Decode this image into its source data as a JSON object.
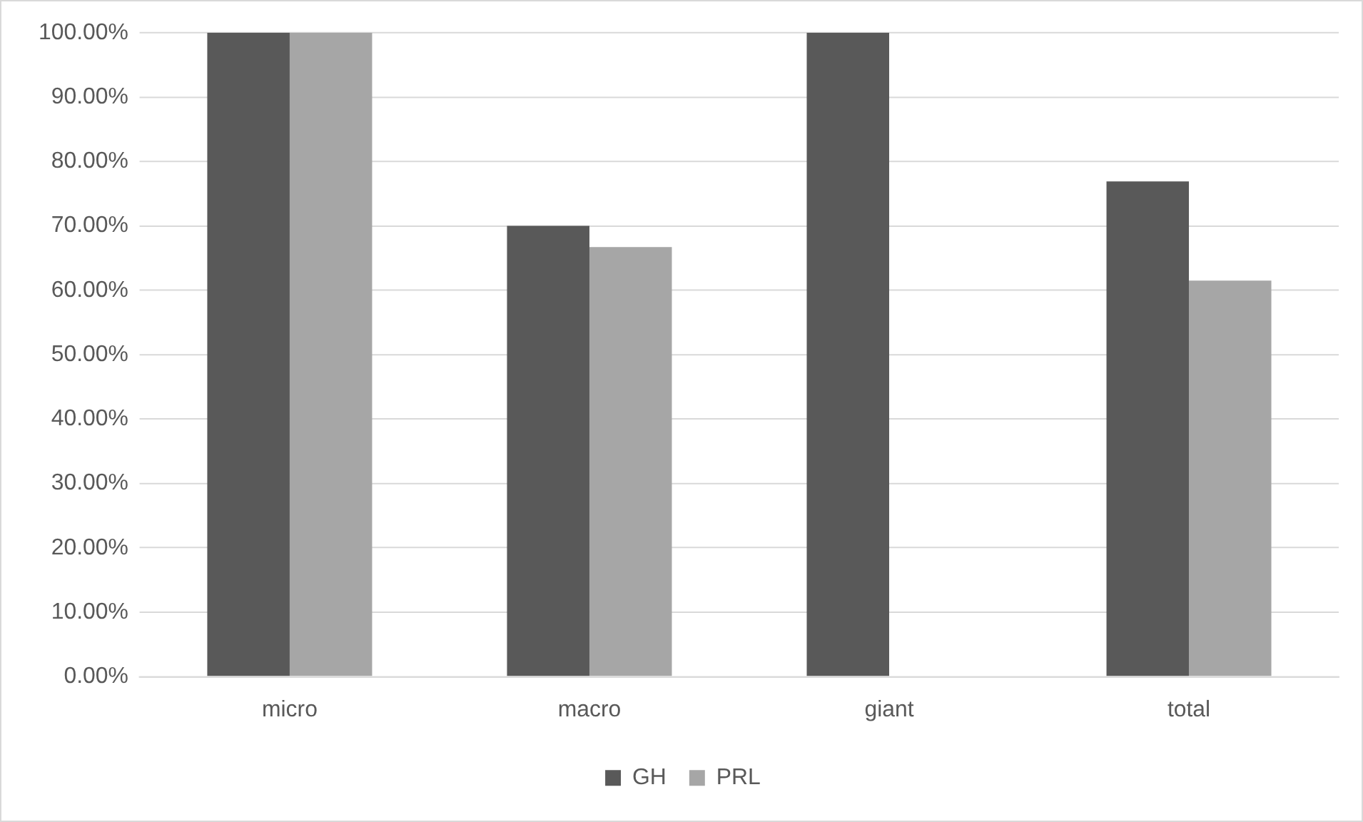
{
  "chart_data": {
    "type": "bar",
    "categories": [
      "micro",
      "macro",
      "giant",
      "total"
    ],
    "series": [
      {
        "name": "GH",
        "color": "#595959",
        "values": [
          100,
          70,
          100,
          76.9
        ]
      },
      {
        "name": "PRL",
        "color": "#a6a6a6",
        "values": [
          100,
          66.7,
          0,
          61.5
        ]
      }
    ],
    "ylim": [
      0,
      100
    ],
    "yticks": [
      {
        "value": 0,
        "label": "0.00%"
      },
      {
        "value": 10,
        "label": "10.00%"
      },
      {
        "value": 20,
        "label": "20.00%"
      },
      {
        "value": 30,
        "label": "30.00%"
      },
      {
        "value": 40,
        "label": "40.00%"
      },
      {
        "value": 50,
        "label": "50.00%"
      },
      {
        "value": 60,
        "label": "60.00%"
      },
      {
        "value": 70,
        "label": "70.00%"
      },
      {
        "value": 80,
        "label": "80.00%"
      },
      {
        "value": 90,
        "label": "90.00%"
      },
      {
        "value": 100,
        "label": "100.00%"
      }
    ],
    "grid": "y",
    "legend": "bottom"
  }
}
